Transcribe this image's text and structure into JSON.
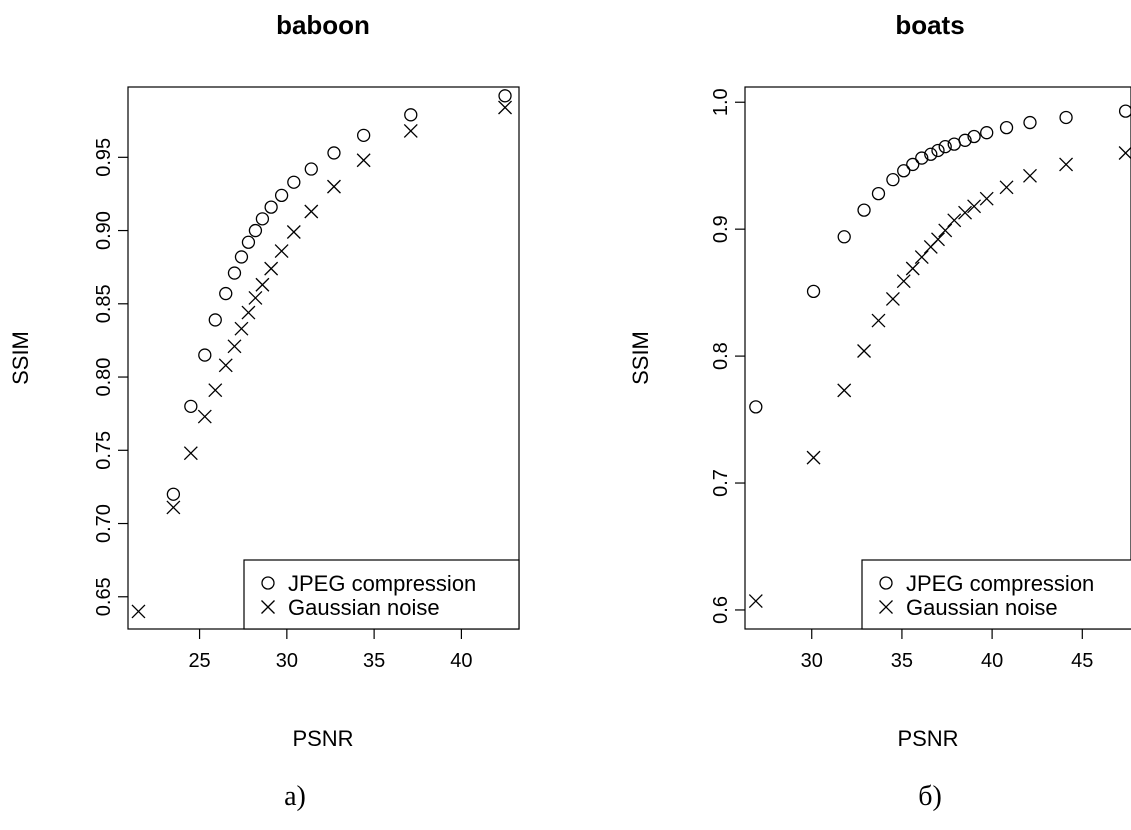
{
  "chart_data": [
    {
      "type": "scatter",
      "title": "baboon",
      "xlabel": "PSNR",
      "ylabel": "SSIM",
      "caption": "a)",
      "xlim": [
        20.9,
        43.3
      ],
      "ylim": [
        0.628,
        0.998
      ],
      "xticks": [
        25,
        30,
        35,
        40
      ],
      "yticks": [
        0.65,
        0.7,
        0.75,
        0.8,
        0.85,
        0.9,
        0.95
      ],
      "ytick_labels": [
        "0.65",
        "0.70",
        "0.75",
        "0.80",
        "0.85",
        "0.90",
        "0.95"
      ],
      "legend_position": "bottom-right",
      "series": [
        {
          "name": "JPEG compression",
          "marker": "circle",
          "x": [
            23.5,
            24.5,
            25.3,
            25.9,
            26.5,
            27.0,
            27.4,
            27.8,
            28.2,
            28.6,
            29.1,
            29.7,
            30.4,
            31.4,
            32.7,
            34.4,
            37.1,
            42.5
          ],
          "y": [
            0.72,
            0.78,
            0.815,
            0.839,
            0.857,
            0.871,
            0.882,
            0.892,
            0.9,
            0.908,
            0.916,
            0.924,
            0.933,
            0.942,
            0.953,
            0.965,
            0.979,
            0.992
          ]
        },
        {
          "name": "Gaussian noise",
          "marker": "cross",
          "x": [
            21.5,
            23.5,
            24.5,
            25.3,
            25.9,
            26.5,
            27.0,
            27.4,
            27.8,
            28.2,
            28.6,
            29.1,
            29.7,
            30.4,
            31.4,
            32.7,
            34.4,
            37.1,
            42.5
          ],
          "y": [
            0.64,
            0.711,
            0.748,
            0.773,
            0.791,
            0.808,
            0.821,
            0.833,
            0.844,
            0.854,
            0.863,
            0.874,
            0.886,
            0.899,
            0.913,
            0.93,
            0.948,
            0.968,
            0.984
          ]
        }
      ]
    },
    {
      "type": "scatter",
      "title": "boats",
      "xlabel": "PSNR",
      "ylabel": "SSIM",
      "caption": "б)",
      "xlim": [
        26.3,
        47.7
      ],
      "ylim": [
        0.585,
        1.012
      ],
      "xticks": [
        30,
        35,
        40,
        45
      ],
      "yticks": [
        0.6,
        0.7,
        0.8,
        0.9,
        1.0
      ],
      "ytick_labels": [
        "0.6",
        "0.7",
        "0.8",
        "0.9",
        "1.0"
      ],
      "legend_position": "bottom-right",
      "series": [
        {
          "name": "JPEG compression",
          "marker": "circle",
          "x": [
            26.9,
            30.1,
            31.8,
            32.9,
            33.7,
            34.5,
            35.1,
            35.6,
            36.1,
            36.6,
            37.0,
            37.4,
            37.9,
            38.5,
            39.0,
            39.7,
            40.8,
            42.1,
            44.1,
            47.4
          ],
          "y": [
            0.76,
            0.851,
            0.894,
            0.915,
            0.928,
            0.939,
            0.946,
            0.951,
            0.956,
            0.959,
            0.962,
            0.965,
            0.967,
            0.97,
            0.973,
            0.976,
            0.98,
            0.984,
            0.988,
            0.993
          ]
        },
        {
          "name": "Gaussian noise",
          "marker": "cross",
          "x": [
            26.9,
            30.1,
            31.8,
            32.9,
            33.7,
            34.5,
            35.1,
            35.6,
            36.1,
            36.6,
            37.0,
            37.4,
            37.9,
            38.5,
            39.0,
            39.7,
            40.8,
            42.1,
            44.1,
            47.4
          ],
          "y": [
            0.607,
            0.72,
            0.773,
            0.804,
            0.828,
            0.845,
            0.859,
            0.869,
            0.878,
            0.886,
            0.892,
            0.899,
            0.907,
            0.913,
            0.918,
            0.924,
            0.933,
            0.942,
            0.951,
            0.96
          ]
        }
      ]
    }
  ]
}
